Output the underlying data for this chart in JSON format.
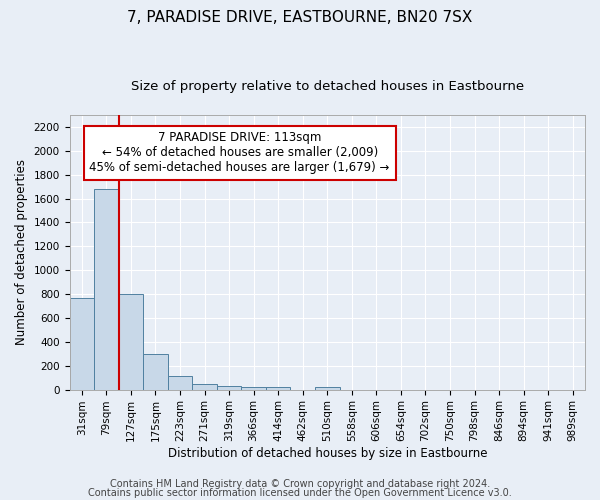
{
  "title": "7, PARADISE DRIVE, EASTBOURNE, BN20 7SX",
  "subtitle": "Size of property relative to detached houses in Eastbourne",
  "xlabel": "Distribution of detached houses by size in Eastbourne",
  "ylabel": "Number of detached properties",
  "categories": [
    "31sqm",
    "79sqm",
    "127sqm",
    "175sqm",
    "223sqm",
    "271sqm",
    "319sqm",
    "366sqm",
    "414sqm",
    "462sqm",
    "510sqm",
    "558sqm",
    "606sqm",
    "654sqm",
    "702sqm",
    "750sqm",
    "798sqm",
    "846sqm",
    "894sqm",
    "941sqm",
    "989sqm"
  ],
  "values": [
    770,
    1680,
    800,
    300,
    110,
    45,
    33,
    25,
    22,
    0,
    22,
    0,
    0,
    0,
    0,
    0,
    0,
    0,
    0,
    0,
    0
  ],
  "bar_color": "#c8d8e8",
  "bar_edge_color": "#5080a0",
  "highlight_line_color": "#cc0000",
  "annotation_line1": "7 PARADISE DRIVE: 113sqm",
  "annotation_line2": "← 54% of detached houses are smaller (2,009)",
  "annotation_line3": "45% of semi-detached houses are larger (1,679) →",
  "annotation_box_color": "#ffffff",
  "annotation_box_edge_color": "#cc0000",
  "ylim": [
    0,
    2300
  ],
  "yticks": [
    0,
    200,
    400,
    600,
    800,
    1000,
    1200,
    1400,
    1600,
    1800,
    2000,
    2200
  ],
  "footer_line1": "Contains HM Land Registry data © Crown copyright and database right 2024.",
  "footer_line2": "Contains public sector information licensed under the Open Government Licence v3.0.",
  "background_color": "#e8eef6",
  "grid_color": "#ffffff",
  "title_fontsize": 11,
  "subtitle_fontsize": 9.5,
  "axis_label_fontsize": 8.5,
  "tick_fontsize": 7.5,
  "annotation_fontsize": 8.5,
  "footer_fontsize": 7
}
